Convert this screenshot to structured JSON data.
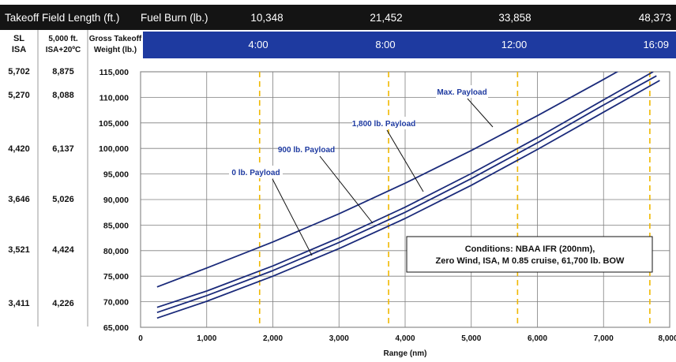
{
  "header": {
    "tofl_title": "Takeoff Field Length (ft.)",
    "fuel_label": "Fuel Burn (lb.)",
    "fuel_values": [
      "10,348",
      "21,452",
      "33,858",
      "48,373"
    ],
    "col_sl": [
      "SL",
      "ISA"
    ],
    "col_5000": [
      "5,000 ft.",
      "ISA+20ºC"
    ],
    "col_gtow": [
      "Gross Takeoff",
      "Weight (lb.)"
    ],
    "time_values": [
      "4:00",
      "8:00",
      "12:00",
      "16:09"
    ]
  },
  "colors": {
    "header_dark": "#141414",
    "time_band": "#1e3aa0",
    "curve": "#1a2a7a",
    "label_text": "#1e3aa0",
    "time_marker": "#f0b800",
    "grid": "#7f7f7f"
  },
  "tofl_rows": [
    {
      "sl": "5,702",
      "ft5000": "8,875"
    },
    {
      "sl": "5,270",
      "ft5000": "8,088"
    },
    {
      "sl": "4,420",
      "ft5000": "6,137"
    },
    {
      "sl": "3,646",
      "ft5000": "5,026"
    },
    {
      "sl": "3,521",
      "ft5000": "4,424"
    },
    {
      "sl": "3,411",
      "ft5000": "4,226"
    }
  ],
  "chart_data": {
    "type": "line",
    "xlabel": "Range (nm)",
    "xlim": [
      0,
      8000
    ],
    "ylim": [
      65000,
      115000
    ],
    "x_ticks": [
      "0",
      "1,000",
      "2,000",
      "3,000",
      "4,000",
      "5,000",
      "6,000",
      "7,000",
      "8,000"
    ],
    "y_ticks": [
      "115,000",
      "110,000",
      "105,000",
      "100,000",
      "95,000",
      "90,000",
      "85,000",
      "80,000",
      "75,000",
      "70,000",
      "65,000"
    ],
    "grid": true,
    "time_markers": [
      1800,
      3750,
      5700,
      7700
    ],
    "series": [
      {
        "name": "Max. Payload",
        "x": [
          250,
          1000,
          2000,
          3000,
          4000,
          5000,
          6000,
          7000,
          7550
        ],
        "y": [
          72900,
          76600,
          81700,
          87200,
          93200,
          99600,
          106400,
          113500,
          117500
        ]
      },
      {
        "name": "1,800 lb. Payload",
        "x": [
          250,
          1000,
          2000,
          3000,
          4000,
          5000,
          6000,
          7000,
          7750
        ],
        "y": [
          68900,
          72100,
          77000,
          82500,
          88500,
          95100,
          102100,
          109500,
          115000
        ]
      },
      {
        "name": "900 lb. Payload",
        "x": [
          250,
          1000,
          2000,
          3000,
          4000,
          5000,
          6000,
          7000,
          7800
        ],
        "y": [
          67900,
          71200,
          76100,
          81600,
          87500,
          94100,
          101100,
          108500,
          114200
        ]
      },
      {
        "name": "0 lb. Payload",
        "x": [
          250,
          1000,
          2000,
          3000,
          4000,
          5000,
          6000,
          7000,
          7850
        ],
        "y": [
          66800,
          70100,
          75000,
          80400,
          86300,
          92800,
          99800,
          107100,
          113300
        ]
      }
    ],
    "annotations": {
      "max_payload": "Max. Payload",
      "payload_1800": "1,800 lb. Payload",
      "payload_900": "900 lb. Payload",
      "payload_0": "0 lb. Payload"
    },
    "conditions": [
      "Conditions: NBAA IFR (200nm),",
      "Zero Wind, ISA, M 0.85 cruise, 61,700 lb. BOW"
    ]
  }
}
